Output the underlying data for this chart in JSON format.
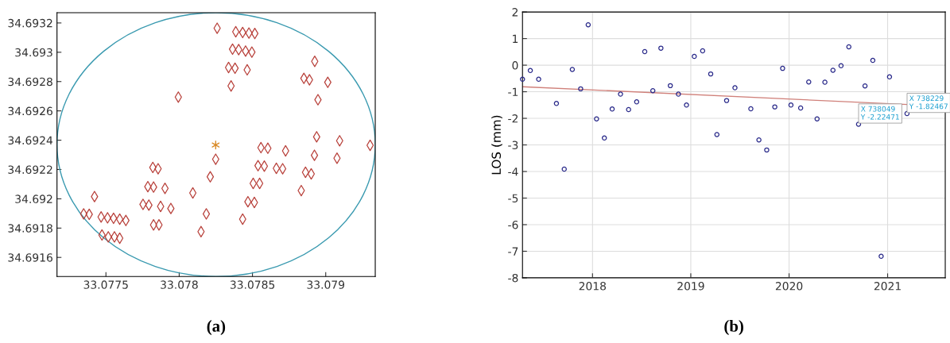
{
  "chart_data": [
    {
      "type": "scatter",
      "title": "(a)",
      "xlim": [
        33.077166,
        33.079338
      ],
      "ylim": [
        34.69147,
        34.69327
      ],
      "xticks": [
        33.0775,
        33.078,
        33.0785,
        33.079
      ],
      "yticks": [
        34.6916,
        34.6918,
        34.692,
        34.6922,
        34.6924,
        34.6926,
        34.6928,
        34.693,
        34.6932
      ],
      "series": [
        {
          "color": "#b8403a",
          "marker": "diamond",
          "x": [
            33.077994,
            33.07782,
            33.077856,
            33.077786,
            33.077825,
            33.077903,
            33.078093,
            33.077422,
            33.077753,
            33.077793,
            33.077873,
            33.077943,
            33.077348,
            33.077386,
            33.077467,
            33.077511,
            33.077552,
            33.077594,
            33.077636,
            33.077825,
            33.077862,
            33.077473,
            33.077516,
            33.077558,
            33.077594,
            33.078259,
            33.078386,
            33.078433,
            33.078476,
            33.078516,
            33.078364,
            33.078406,
            33.078453,
            33.078496,
            33.078337,
            33.078381,
            33.078464,
            33.078354,
            33.078925,
            33.078851,
            33.078889,
            33.079014,
            33.078947,
            33.078249,
            33.078212,
            33.078185,
            33.078149,
            33.078433,
            33.078469,
            33.078513,
            33.078505,
            33.078549,
            33.078538,
            33.078581,
            33.078558,
            33.078605,
            33.078663,
            33.078706,
            33.078726,
            33.078938,
            33.078923,
            33.078862,
            33.078901,
            33.078833,
            33.079095,
            33.079077,
            33.079303
          ],
          "values": [
            34.692694,
            34.692214,
            34.692205,
            34.692083,
            34.69208,
            34.692071,
            34.69204,
            34.692015,
            34.691962,
            34.691957,
            34.691948,
            34.691934,
            34.691897,
            34.691894,
            34.691876,
            34.69187,
            34.691867,
            34.691861,
            34.691852,
            34.691822,
            34.691822,
            34.691753,
            34.69174,
            34.69174,
            34.691731,
            34.693164,
            34.69314,
            34.693135,
            34.693131,
            34.693128,
            34.693021,
            34.693018,
            34.693008,
            34.693001,
            34.692896,
            34.692891,
            34.69288,
            34.69277,
            34.692938,
            34.692822,
            34.692812,
            34.692795,
            34.692676,
            34.69227,
            34.69215,
            34.691897,
            34.691776,
            34.691861,
            34.69198,
            34.691975,
            34.692105,
            34.692105,
            34.692226,
            34.692223,
            34.692349,
            34.692345,
            34.692208,
            34.692205,
            34.692327,
            34.692423,
            34.692297,
            34.692181,
            34.69217,
            34.692056,
            34.692396,
            34.692277,
            34.692365
          ]
        },
        {
          "color": "#d98c2a",
          "marker": "cross",
          "x": [
            33.078249
          ],
          "values": [
            34.692367
          ]
        }
      ]
    },
    {
      "type": "scatter",
      "title": "(b)",
      "ylabel": "LOS (mm)",
      "grid": true,
      "xlim": [
        "2017-04-16",
        "2021-08-03"
      ],
      "ylim": [
        -8,
        2
      ],
      "xticks": [
        {
          "value": "2018-01-01",
          "label": "2018"
        },
        {
          "value": "2019-01-01",
          "label": "2019"
        },
        {
          "value": "2020-01-01",
          "label": "2020"
        },
        {
          "value": "2021-01-01",
          "label": "2021"
        }
      ],
      "yticks": [
        -8,
        -7,
        -6,
        -5,
        -4,
        -3,
        -2,
        -1,
        0,
        1,
        2
      ],
      "series": [
        {
          "type": "line",
          "color": "#d0807a",
          "marker": "none",
          "x": [
            "2017-04-16",
            "2021-03-14"
          ],
          "values": [
            -0.81,
            -1.48
          ]
        },
        {
          "color": "#2a2a8a",
          "marker": "circle",
          "x": [
            "2017-04-16",
            "2017-05-15",
            "2017-06-15",
            "2017-08-20",
            "2017-09-18",
            "2017-10-18",
            "2017-11-18",
            "2017-12-16",
            "2018-01-16",
            "2018-02-14",
            "2018-03-15",
            "2018-04-15",
            "2018-05-15",
            "2018-06-14",
            "2018-07-14",
            "2018-08-13",
            "2018-09-12",
            "2018-10-17",
            "2018-11-16",
            "2018-12-16",
            "2019-01-14",
            "2019-02-14",
            "2019-03-16",
            "2019-04-08",
            "2019-05-14",
            "2019-06-14",
            "2019-08-12",
            "2019-09-11",
            "2019-10-10",
            "2019-11-09",
            "2019-12-08",
            "2020-01-08",
            "2020-02-13",
            "2020-03-14",
            "2020-04-14",
            "2020-05-13",
            "2020-06-12",
            "2020-07-12",
            "2020-08-10",
            "2020-09-15",
            "2020-10-09",
            "2020-11-07",
            "2020-12-08",
            "2021-01-08",
            "2021-03-14"
          ],
          "values": [
            -0.53,
            -0.2,
            -0.53,
            -1.44,
            -3.91,
            -0.16,
            -0.89,
            1.52,
            -2.02,
            -2.74,
            -1.65,
            -1.09,
            -1.67,
            -1.38,
            0.51,
            -0.96,
            0.64,
            -0.77,
            -1.09,
            -1.5,
            0.33,
            0.54,
            -0.33,
            -2.61,
            -1.33,
            -0.85,
            -1.64,
            -2.81,
            -3.19,
            -1.57,
            -0.12,
            -1.5,
            -1.61,
            -0.63,
            -2.02,
            -0.64,
            -0.19,
            -0.02,
            0.69,
            -2.22,
            -0.78,
            0.18,
            -7.19,
            -0.44,
            -1.82
          ]
        }
      ],
      "annotations": [
        {
          "text": "X 738049\nY -2.22471",
          "x": "2020-09-15",
          "y": -2.22471
        },
        {
          "text": "X 738229\nY -1.82467",
          "x": "2021-03-14",
          "y": -1.82467
        }
      ]
    }
  ]
}
